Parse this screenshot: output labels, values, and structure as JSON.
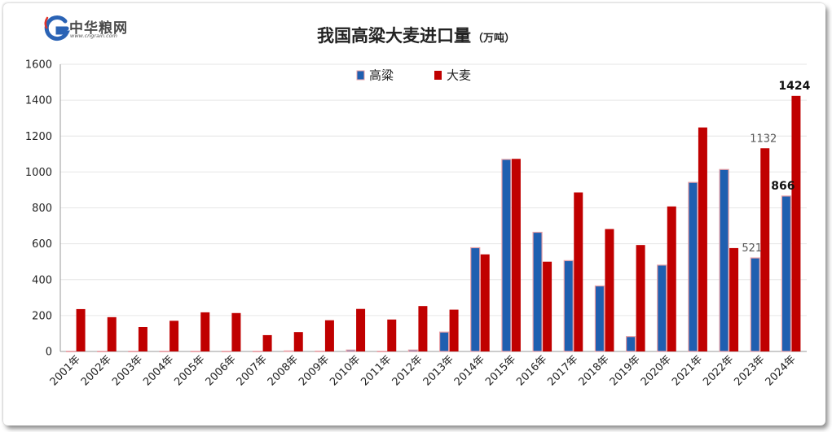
{
  "brand": {
    "name": "中华粮网",
    "url": "www.cngrain.com",
    "logo_letter": "G"
  },
  "colors": {
    "sorghum_fill": "#1f5fb0",
    "sorghum_edge": "#e8a0a6",
    "barley_fill": "#c00000",
    "grid": "#e6e6e6",
    "axis": "#999999"
  },
  "chart_data": {
    "type": "bar",
    "title": "我国高粱大麦进口量",
    "unit": "（万吨）",
    "categories": [
      "2001年",
      "2002年",
      "2003年",
      "2004年",
      "2005年",
      "2006年",
      "2007年",
      "2008年",
      "2009年",
      "2010年",
      "2011年",
      "2012年",
      "2013年",
      "2014年",
      "2015年",
      "2016年",
      "2017年",
      "2018年",
      "2019年",
      "2020年",
      "2021年",
      "2022年",
      "2023年",
      "2024年"
    ],
    "series": [
      {
        "name": "高粱",
        "values": [
          1,
          1,
          1,
          1,
          1,
          1,
          1,
          3,
          2,
          8,
          1,
          8,
          108,
          578,
          1070,
          664,
          506,
          365,
          83,
          481,
          942,
          1014,
          521,
          866
        ]
      },
      {
        "name": "大麦",
        "values": [
          236,
          191,
          136,
          171,
          218,
          214,
          91,
          108,
          174,
          237,
          178,
          253,
          233,
          541,
          1073,
          500,
          886,
          682,
          593,
          808,
          1248,
          576,
          1132,
          1424
        ]
      }
    ],
    "ylim": [
      0,
      1600
    ],
    "yticks": [
      "0",
      "200",
      "400",
      "600",
      "800",
      "1000",
      "1200",
      "1400",
      "1600"
    ],
    "grid": true,
    "legend_position": "top-center",
    "annotations": [
      {
        "category": "2023年",
        "series": "高粱",
        "text": "521",
        "bold": false
      },
      {
        "category": "2023年",
        "series": "大麦",
        "text": "1132",
        "bold": false
      },
      {
        "category": "2024年",
        "series": "高粱",
        "text": "866",
        "bold": true
      },
      {
        "category": "2024年",
        "series": "大麦",
        "text": "1424",
        "bold": true
      }
    ]
  }
}
